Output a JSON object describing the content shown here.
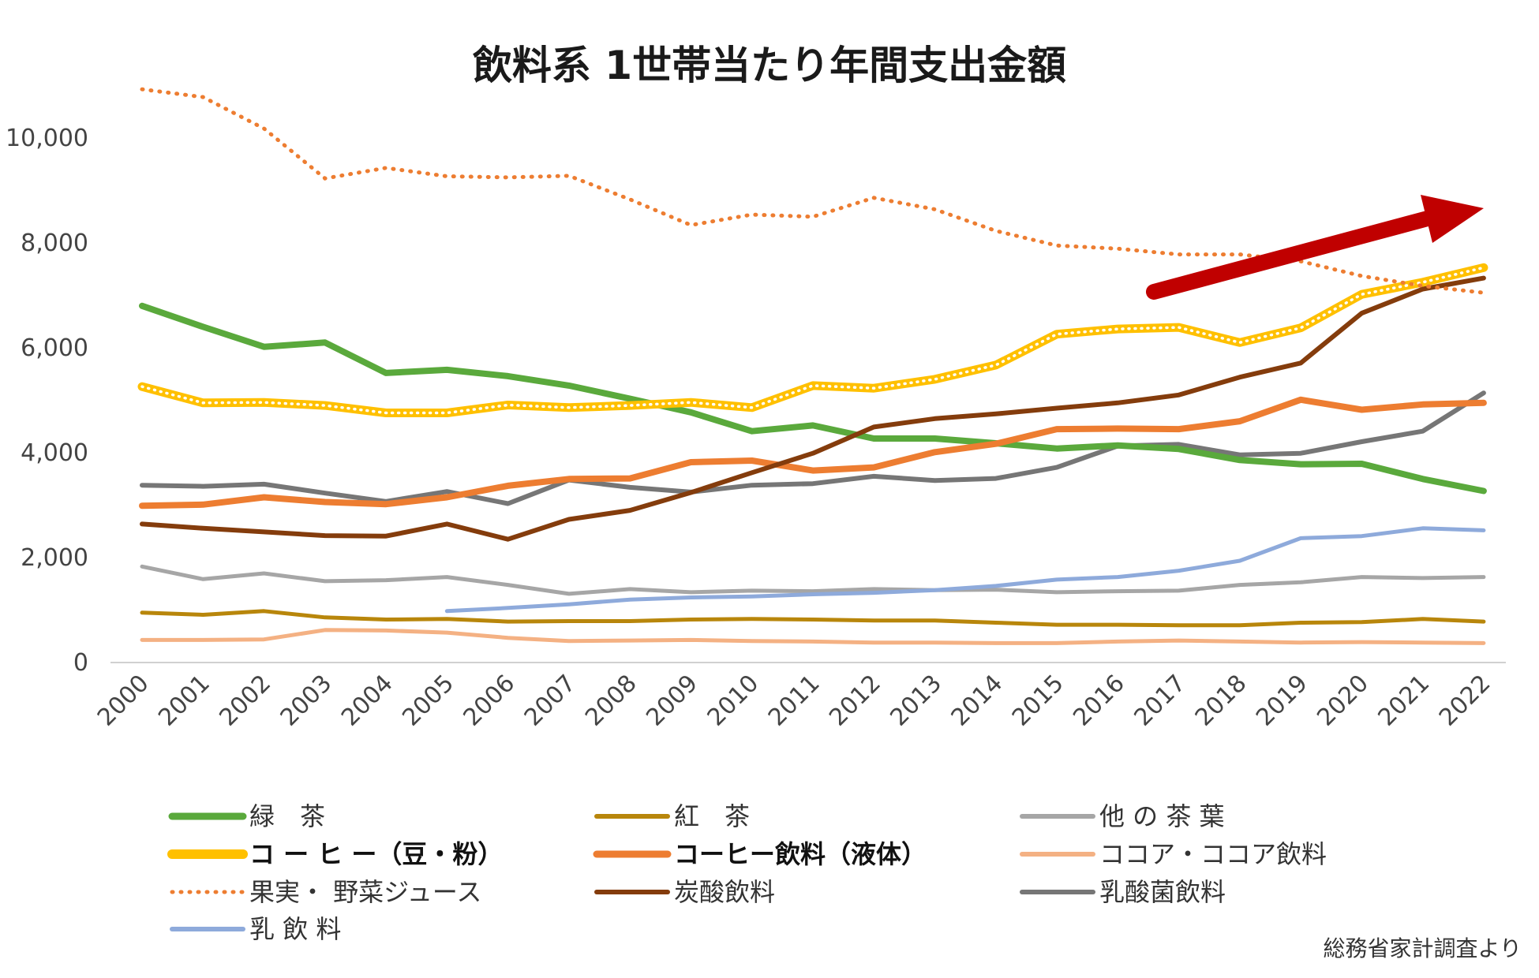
{
  "chart_data": {
    "type": "line",
    "title": "飲料系 1世帯当たり年間支出金額",
    "source": "総務省家計調査より",
    "xlabel": "",
    "ylabel": "",
    "ylim": [
      0,
      11000
    ],
    "yticks": [
      0,
      2000,
      4000,
      6000,
      8000,
      10000
    ],
    "ytick_labels": [
      "0",
      "2,000",
      "4,000",
      "6,000",
      "8,000",
      "10,000"
    ],
    "categories": [
      "2000",
      "2001",
      "2002",
      "2003",
      "2004",
      "2005",
      "2006",
      "2007",
      "2008",
      "2009",
      "2010",
      "2011",
      "2012",
      "2013",
      "2014",
      "2015",
      "2016",
      "2017",
      "2018",
      "2019",
      "2020",
      "2021",
      "2022"
    ],
    "series": [
      {
        "name": "緑　茶",
        "color": "#5aa93c",
        "style": "solid",
        "values": [
          6800,
          6400,
          6020,
          6100,
          5520,
          5580,
          5460,
          5280,
          5030,
          4770,
          4410,
          4520,
          4270,
          4270,
          4180,
          4080,
          4140,
          4070,
          3860,
          3780,
          3790,
          3500,
          3270
        ]
      },
      {
        "name": "紅　茶",
        "color": "#b8860b",
        "style": "solid",
        "values": [
          950,
          910,
          980,
          860,
          820,
          830,
          780,
          790,
          790,
          820,
          830,
          820,
          800,
          800,
          760,
          720,
          720,
          710,
          710,
          760,
          770,
          830,
          780
        ]
      },
      {
        "name": "他 の 茶 葉",
        "color": "#a6a6a6",
        "style": "solid",
        "values": [
          1830,
          1590,
          1700,
          1550,
          1570,
          1630,
          1480,
          1310,
          1400,
          1340,
          1370,
          1360,
          1400,
          1380,
          1390,
          1340,
          1360,
          1370,
          1480,
          1530,
          1630,
          1610,
          1630
        ]
      },
      {
        "name": "コ ー ヒ ー（豆・粉）",
        "color": "#ffc000",
        "style": "coffee",
        "bold": true,
        "values": [
          5260,
          4950,
          4960,
          4900,
          4760,
          4760,
          4910,
          4860,
          4900,
          4960,
          4860,
          5280,
          5230,
          5400,
          5670,
          6260,
          6360,
          6390,
          6100,
          6380,
          7020,
          7250,
          7530
        ]
      },
      {
        "name": "コーヒー飲料（液体）",
        "color": "#ed7d31",
        "style": "solid",
        "bold": true,
        "values": [
          2990,
          3010,
          3150,
          3060,
          3020,
          3150,
          3370,
          3500,
          3510,
          3820,
          3850,
          3660,
          3720,
          4010,
          4170,
          4450,
          4460,
          4450,
          4600,
          5010,
          4820,
          4920,
          4950
        ]
      },
      {
        "name": "ココア・ココア飲料",
        "color": "#f4b183",
        "style": "solid",
        "values": [
          430,
          430,
          440,
          620,
          610,
          570,
          470,
          410,
          420,
          430,
          410,
          400,
          380,
          380,
          370,
          370,
          400,
          420,
          400,
          380,
          390,
          380,
          370
        ]
      },
      {
        "name": "果実・ 野菜ジュース",
        "color": "#ed7d31",
        "style": "dotted",
        "values": [
          10930,
          10780,
          10180,
          9230,
          9430,
          9270,
          9250,
          9280,
          8830,
          8340,
          8540,
          8500,
          8860,
          8640,
          8230,
          7950,
          7890,
          7780,
          7780,
          7650,
          7370,
          7180,
          7050
        ]
      },
      {
        "name": "炭酸飲料",
        "color": "#843c0c",
        "style": "solid",
        "values": [
          2640,
          2560,
          2490,
          2420,
          2410,
          2640,
          2350,
          2730,
          2900,
          3240,
          3620,
          3990,
          4490,
          4650,
          4740,
          4850,
          4950,
          5100,
          5440,
          5710,
          6660,
          7120,
          7330
        ]
      },
      {
        "name": "乳酸菌飲料",
        "color": "#767676",
        "style": "solid",
        "values": [
          3380,
          3360,
          3400,
          3230,
          3070,
          3260,
          3030,
          3480,
          3340,
          3250,
          3380,
          3410,
          3550,
          3470,
          3510,
          3720,
          4130,
          4160,
          3960,
          3990,
          4210,
          4410,
          5140
        ]
      },
      {
        "name": "乳 飲 料",
        "color": "#8eaadb",
        "style": "solid",
        "values": [
          null,
          null,
          null,
          null,
          null,
          980,
          1040,
          1110,
          1200,
          1240,
          1260,
          1300,
          1330,
          1380,
          1460,
          1580,
          1630,
          1750,
          1940,
          2370,
          2410,
          2560,
          2520
        ]
      }
    ],
    "annotations": [
      {
        "type": "arrow",
        "meaning": "upward trend",
        "color": "#c00000"
      }
    ]
  }
}
